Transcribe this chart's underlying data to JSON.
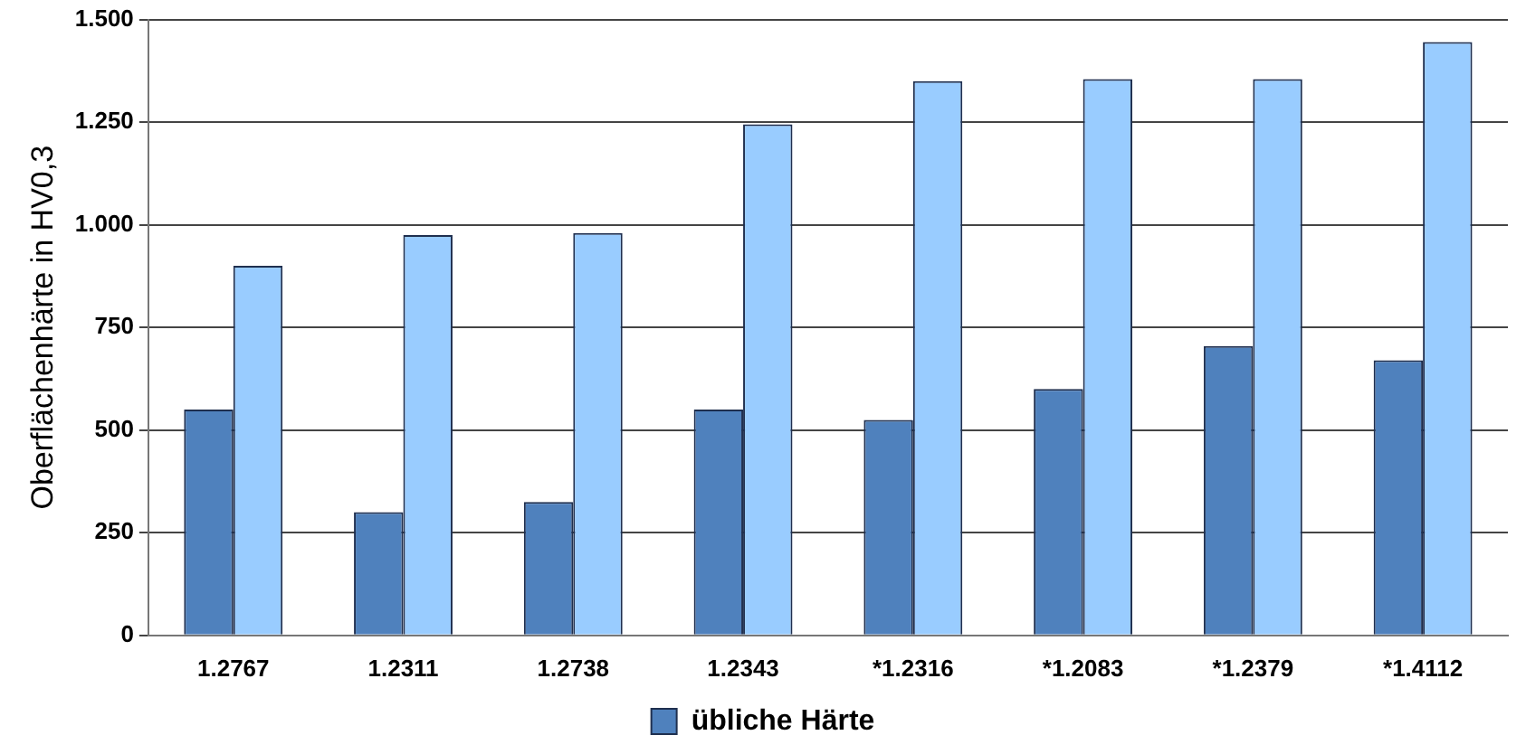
{
  "chart_data": {
    "type": "bar",
    "ylabel": "Oberflächenhärte in HV0,3",
    "categories": [
      "1.2767",
      "1.2311",
      "1.2738",
      "1.2343",
      "*1.2316",
      "*1.2083",
      "*1.2379",
      "*1.4112"
    ],
    "series": [
      {
        "name": "übliche Härte",
        "color": "#4f81bd",
        "values": [
          550,
          300,
          325,
          550,
          525,
          600,
          705,
          670
        ]
      },
      {
        "color": "#99ccff",
        "values": [
          900,
          975,
          980,
          1245,
          1350,
          1355,
          1355,
          1445
        ]
      }
    ],
    "ylim": [
      0,
      1500
    ],
    "yticks": [
      0,
      250,
      500,
      750,
      {
        "value": 1000,
        "label": "1.000"
      },
      {
        "value": 1250,
        "label": "1.250"
      },
      {
        "value": 1500,
        "label": "1.500"
      }
    ],
    "grid": "y",
    "legend": "bottom"
  }
}
